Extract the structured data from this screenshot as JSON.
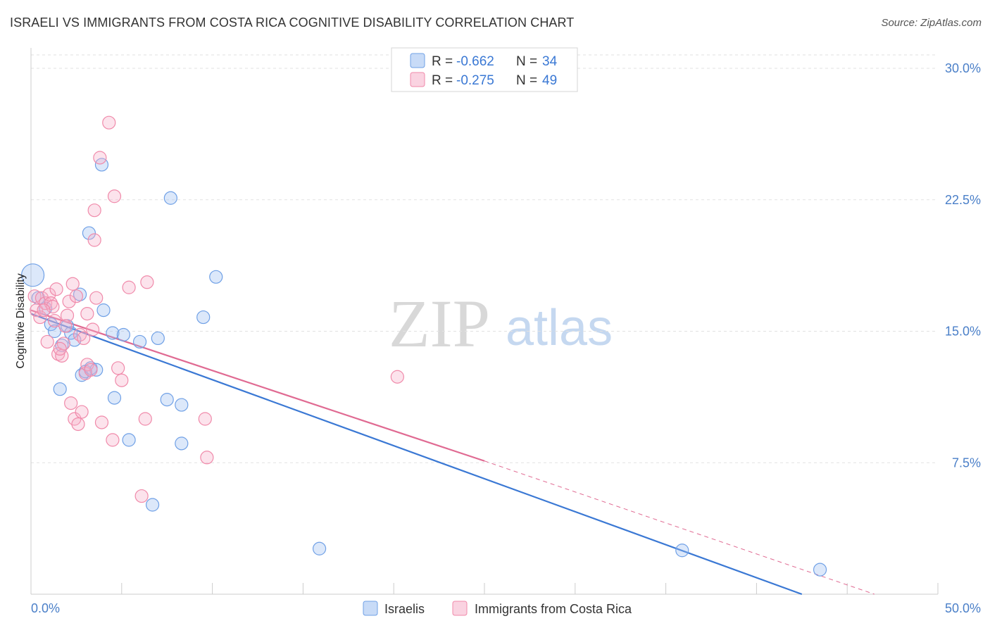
{
  "title": "ISRAELI VS IMMIGRANTS FROM COSTA RICA COGNITIVE DISABILITY CORRELATION CHART",
  "source": "Source: ZipAtlas.com",
  "watermark": {
    "zip": "ZIP",
    "atlas": "atlas"
  },
  "legend_top": [
    {
      "r_label": "R =",
      "r_value": "-0.662",
      "n_label": "N =",
      "n_value": "34",
      "color": "#6fa0e6"
    },
    {
      "r_label": "R =",
      "r_value": "-0.275",
      "n_label": "N =",
      "n_value": "49",
      "color": "#f08aaa"
    }
  ],
  "legend_bottom": [
    "Israelis",
    "Immigrants from Costa Rica"
  ],
  "chart_data": {
    "type": "scatter",
    "title": "ISRAELI VS IMMIGRANTS FROM COSTA RICA COGNITIVE DISABILITY CORRELATION CHART",
    "xlabel": "",
    "ylabel": "Cognitive Disability",
    "xlim": [
      0,
      50
    ],
    "ylim": [
      0,
      30
    ],
    "x_tick_labels": [
      "0.0%",
      "50.0%"
    ],
    "y_ticks": [
      7.5,
      15.0,
      22.5,
      30.0
    ],
    "y_tick_labels": [
      "7.5%",
      "15.0%",
      "22.5%",
      "30.0%"
    ],
    "series": [
      {
        "name": "Israelis",
        "color": "#6fa0e6",
        "line_color": "#3a78d4",
        "fill": "rgba(155,190,240,0.35)",
        "r": -0.662,
        "n": 34,
        "trend": {
          "x0": 0,
          "y0": 16.0,
          "x1": 42.5,
          "y1": 0.0
        },
        "points": [
          [
            0.1,
            18.2,
            16
          ],
          [
            0.4,
            16.9,
            9
          ],
          [
            0.8,
            16.3,
            9
          ],
          [
            1.1,
            15.4,
            9
          ],
          [
            1.3,
            15.0,
            9
          ],
          [
            1.6,
            11.7,
            9
          ],
          [
            1.7,
            14.2,
            9
          ],
          [
            2.0,
            15.3,
            9
          ],
          [
            2.2,
            14.9,
            9
          ],
          [
            2.4,
            14.5,
            9
          ],
          [
            2.7,
            17.1,
            9
          ],
          [
            2.8,
            12.5,
            9
          ],
          [
            3.0,
            12.7,
            9
          ],
          [
            3.3,
            12.9,
            9
          ],
          [
            3.6,
            12.8,
            9
          ],
          [
            3.9,
            24.5,
            9
          ],
          [
            4.0,
            16.2,
            9
          ],
          [
            3.2,
            20.6,
            9
          ],
          [
            4.6,
            11.2,
            9
          ],
          [
            4.5,
            14.9,
            9
          ],
          [
            5.1,
            14.8,
            9
          ],
          [
            5.4,
            8.8,
            9
          ],
          [
            6.0,
            14.4,
            9
          ],
          [
            7.0,
            14.6,
            9
          ],
          [
            6.7,
            5.1,
            9
          ],
          [
            7.5,
            11.1,
            9
          ],
          [
            7.7,
            22.6,
            9
          ],
          [
            8.3,
            10.8,
            9
          ],
          [
            8.3,
            8.6,
            9
          ],
          [
            9.5,
            15.8,
            9
          ],
          [
            10.2,
            18.1,
            9
          ],
          [
            15.9,
            2.6,
            9
          ],
          [
            35.9,
            2.5,
            9
          ],
          [
            43.5,
            1.4,
            9
          ]
        ]
      },
      {
        "name": "Immigrants from Costa Rica",
        "color": "#f08aaa",
        "line_color": "#e06a92",
        "fill": "rgba(245,175,200,0.35)",
        "r": -0.275,
        "n": 49,
        "trend": {
          "x0": 0,
          "y0": 16.2,
          "x1": 25.0,
          "y1": 7.6,
          "dash_x1": 46.5,
          "dash_y1": 0.0
        },
        "points": [
          [
            0.2,
            17.0,
            9
          ],
          [
            0.3,
            16.2,
            9
          ],
          [
            0.5,
            15.8,
            9
          ],
          [
            0.6,
            16.9,
            9
          ],
          [
            0.8,
            16.6,
            9
          ],
          [
            0.9,
            14.4,
            9
          ],
          [
            1.0,
            17.1,
            9
          ],
          [
            1.1,
            16.6,
            9
          ],
          [
            1.2,
            16.4,
            9
          ],
          [
            1.3,
            15.6,
            9
          ],
          [
            1.4,
            17.4,
            9
          ],
          [
            1.5,
            13.7,
            9
          ],
          [
            1.7,
            13.6,
            9
          ],
          [
            1.8,
            14.3,
            9
          ],
          [
            2.0,
            15.9,
            9
          ],
          [
            2.1,
            16.7,
            9
          ],
          [
            2.2,
            10.9,
            9
          ],
          [
            2.3,
            17.7,
            9
          ],
          [
            2.4,
            10.0,
            9
          ],
          [
            2.5,
            17.0,
            9
          ],
          [
            2.6,
            9.7,
            9
          ],
          [
            2.7,
            14.8,
            9
          ],
          [
            2.8,
            10.4,
            9
          ],
          [
            3.0,
            12.6,
            9
          ],
          [
            3.1,
            13.1,
            9
          ],
          [
            3.1,
            16.0,
            9
          ],
          [
            3.3,
            12.8,
            9
          ],
          [
            3.5,
            20.2,
            9
          ],
          [
            3.5,
            21.9,
            9
          ],
          [
            3.6,
            16.9,
            9
          ],
          [
            3.8,
            24.9,
            9
          ],
          [
            3.9,
            9.8,
            9
          ],
          [
            4.3,
            26.9,
            9
          ],
          [
            4.5,
            8.8,
            9
          ],
          [
            4.6,
            22.7,
            9
          ],
          [
            4.8,
            12.9,
            9
          ],
          [
            5.0,
            12.2,
            9
          ],
          [
            5.4,
            17.5,
            9
          ],
          [
            6.1,
            5.6,
            9
          ],
          [
            6.3,
            10.0,
            9
          ],
          [
            6.4,
            17.8,
            9
          ],
          [
            9.6,
            10.0,
            9
          ],
          [
            9.7,
            7.8,
            9
          ],
          [
            20.2,
            12.4,
            9
          ],
          [
            0.7,
            16.2,
            9
          ],
          [
            1.9,
            15.3,
            9
          ],
          [
            2.9,
            14.6,
            9
          ],
          [
            1.6,
            14.0,
            9
          ],
          [
            3.4,
            15.1,
            9
          ]
        ]
      }
    ]
  }
}
